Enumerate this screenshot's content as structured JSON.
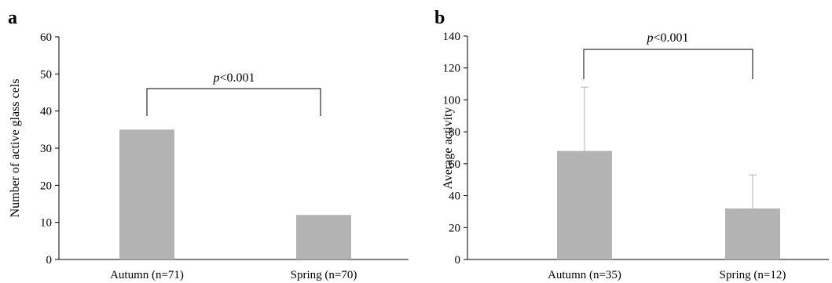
{
  "chart_data": [
    {
      "panel": "a",
      "type": "bar",
      "categories": [
        "Autumn (n=71)",
        "Spring (n=70)"
      ],
      "values": [
        35,
        12
      ],
      "ylabel": "Number of active glass cels",
      "ylim": [
        0,
        60
      ],
      "yticks": [
        0,
        10,
        20,
        30,
        40,
        50,
        60
      ],
      "bar_color": "#b3b3b3",
      "annotation": {
        "italic": "p",
        "rest": "<0.001"
      }
    },
    {
      "panel": "b",
      "type": "bar",
      "categories": [
        "Autumn (n=35)",
        "Spring (n=12)"
      ],
      "values": [
        68,
        32
      ],
      "error_upper": [
        108,
        53
      ],
      "ylabel": "Average activity",
      "ylim": [
        0,
        140
      ],
      "yticks": [
        0,
        20,
        40,
        60,
        80,
        100,
        120,
        140
      ],
      "bar_color": "#b3b3b3",
      "annotation": {
        "italic": "p",
        "rest": "<0.001"
      }
    }
  ]
}
